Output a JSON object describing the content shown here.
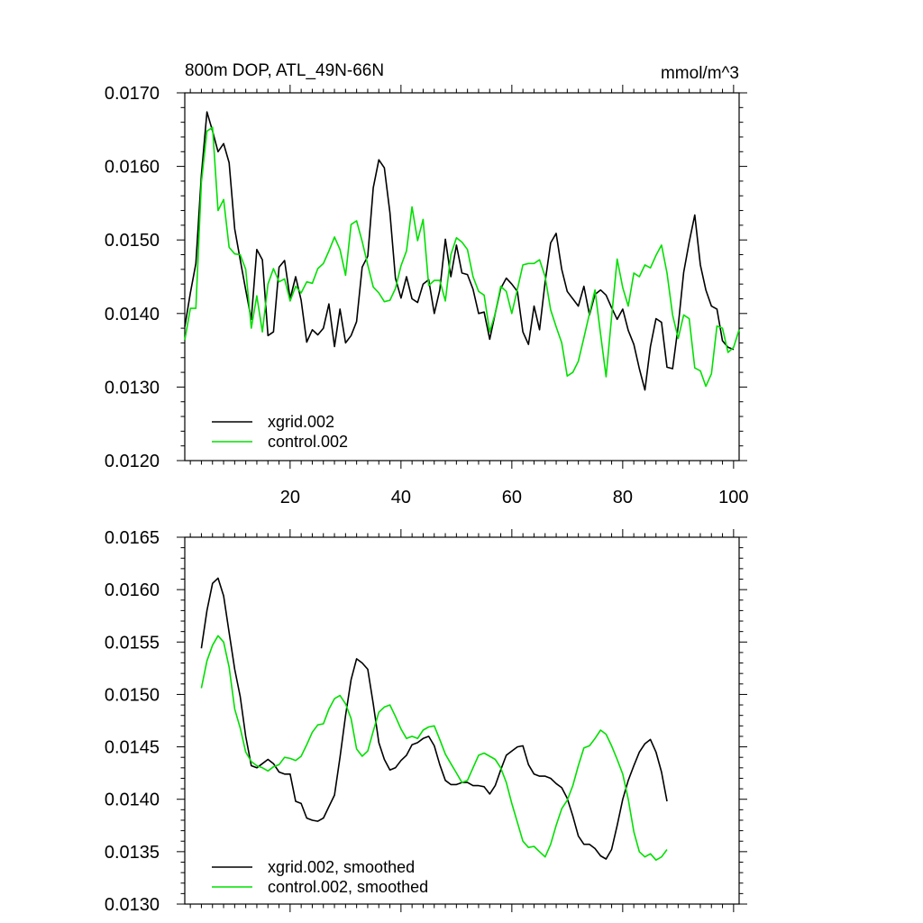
{
  "chart_data": [
    {
      "type": "line",
      "title": "800m DOP, ATL_49N-66N",
      "units": "mmol/m^3",
      "xlim": [
        1,
        101
      ],
      "ylim": [
        0.012,
        0.017
      ],
      "y_ticks": [
        "0.0170",
        "0.0160",
        "0.0150",
        "0.0140",
        "0.0130",
        "0.0120"
      ],
      "x_ticks": [
        "20",
        "40",
        "60",
        "80",
        "100"
      ],
      "legend_position": "bottom-left",
      "series": [
        {
          "name": "xgrid.002",
          "color": "#000000",
          "x_start": 1,
          "values": [
            0.01382,
            0.01428,
            0.01468,
            0.01588,
            0.01674,
            0.01648,
            0.0162,
            0.01631,
            0.01605,
            0.01515,
            0.01473,
            0.01432,
            0.01392,
            0.01487,
            0.01473,
            0.0137,
            0.01375,
            0.01463,
            0.01472,
            0.0142,
            0.0145,
            0.01418,
            0.01361,
            0.01378,
            0.01371,
            0.0138,
            0.01413,
            0.01355,
            0.01406,
            0.0136,
            0.0137,
            0.01389,
            0.01463,
            0.01478,
            0.01571,
            0.01609,
            0.01598,
            0.01537,
            0.01448,
            0.01421,
            0.0145,
            0.0142,
            0.01415,
            0.0144,
            0.01446,
            0.014,
            0.01432,
            0.01501,
            0.0145,
            0.01493,
            0.01455,
            0.01453,
            0.01433,
            0.014,
            0.01402,
            0.01365,
            0.014,
            0.01434,
            0.01448,
            0.0144,
            0.0143,
            0.01375,
            0.01358,
            0.0141,
            0.01378,
            0.01443,
            0.01496,
            0.01509,
            0.0146,
            0.0143,
            0.0142,
            0.0141,
            0.01437,
            0.01398,
            0.01426,
            0.01432,
            0.01425,
            0.01408,
            0.01392,
            0.01406,
            0.01377,
            0.01358,
            0.01325,
            0.01296,
            0.01355,
            0.01393,
            0.01388,
            0.01327,
            0.01325,
            0.01383,
            0.01456,
            0.01497,
            0.01534,
            0.01466,
            0.01432,
            0.0141,
            0.01406,
            0.01363,
            0.01354,
            0.01351
          ]
        },
        {
          "name": "control.002",
          "color": "#00e000",
          "x_start": 1,
          "values": [
            0.01364,
            0.01407,
            0.01407,
            0.01578,
            0.01648,
            0.01653,
            0.0154,
            0.01555,
            0.0149,
            0.01481,
            0.0148,
            0.0146,
            0.0138,
            0.01424,
            0.01375,
            0.0144,
            0.01461,
            0.01443,
            0.01447,
            0.01417,
            0.01437,
            0.01428,
            0.01443,
            0.01441,
            0.01461,
            0.01468,
            0.01485,
            0.01504,
            0.01487,
            0.01452,
            0.01521,
            0.01526,
            0.01498,
            0.01466,
            0.01436,
            0.01428,
            0.01416,
            0.01418,
            0.01434,
            0.01465,
            0.01485,
            0.01545,
            0.01499,
            0.01528,
            0.01438,
            0.01445,
            0.01445,
            0.01417,
            0.0148,
            0.01503,
            0.01497,
            0.01487,
            0.0145,
            0.0143,
            0.01425,
            0.01375,
            0.014,
            0.01437,
            0.0143,
            0.014,
            0.01433,
            0.01466,
            0.01468,
            0.01468,
            0.01473,
            0.0145,
            0.01405,
            0.01382,
            0.0136,
            0.01315,
            0.0132,
            0.01335,
            0.01367,
            0.014,
            0.01432,
            0.01372,
            0.01314,
            0.01395,
            0.01474,
            0.01435,
            0.0141,
            0.01455,
            0.0145,
            0.01466,
            0.01462,
            0.01479,
            0.01493,
            0.01455,
            0.01398,
            0.01366,
            0.01398,
            0.01393,
            0.01326,
            0.01322,
            0.01301,
            0.01318,
            0.01383,
            0.0138,
            0.01347,
            0.01354,
            0.01378
          ]
        }
      ]
    },
    {
      "type": "line",
      "xlim": [
        1,
        101
      ],
      "ylim": [
        0.013,
        0.0165
      ],
      "y_ticks": [
        "0.0165",
        "0.0160",
        "0.0155",
        "0.0150",
        "0.0145",
        "0.0140",
        "0.0135",
        "0.0130"
      ],
      "legend_position": "bottom-left",
      "series": [
        {
          "name": "xgrid.002, smoothed",
          "color": "#000000",
          "x_start": 4,
          "values": [
            0.01544,
            0.0158,
            0.01606,
            0.01611,
            0.01594,
            0.01559,
            0.01524,
            0.01498,
            0.0146,
            0.01432,
            0.0143,
            0.01434,
            0.01438,
            0.01434,
            0.01426,
            0.01424,
            0.01424,
            0.01398,
            0.01396,
            0.01382,
            0.0138,
            0.01379,
            0.01382,
            0.01393,
            0.01404,
            0.0144,
            0.0148,
            0.01514,
            0.01534,
            0.0153,
            0.01524,
            0.01491,
            0.01454,
            0.01438,
            0.01428,
            0.0143,
            0.01437,
            0.01442,
            0.01452,
            0.01454,
            0.01458,
            0.0146,
            0.01451,
            0.01433,
            0.01418,
            0.01414,
            0.01414,
            0.01416,
            0.01416,
            0.01413,
            0.01413,
            0.01412,
            0.01405,
            0.01413,
            0.01428,
            0.01442,
            0.01446,
            0.0145,
            0.01451,
            0.01433,
            0.01424,
            0.01422,
            0.01422,
            0.0142,
            0.01415,
            0.01411,
            0.01401,
            0.01384,
            0.01365,
            0.01357,
            0.01357,
            0.01353,
            0.01346,
            0.01343,
            0.01352,
            0.01375,
            0.014,
            0.01418,
            0.01432,
            0.01445,
            0.01453,
            0.01457,
            0.01445,
            0.01426,
            0.01398
          ]
        },
        {
          "name": "control.002, smoothed",
          "color": "#00e000",
          "x_start": 4,
          "values": [
            0.01506,
            0.01532,
            0.01547,
            0.01556,
            0.0155,
            0.01526,
            0.01486,
            0.01468,
            0.01445,
            0.01436,
            0.01432,
            0.0143,
            0.01427,
            0.01431,
            0.01433,
            0.0144,
            0.01439,
            0.01437,
            0.01441,
            0.01452,
            0.01464,
            0.01471,
            0.01472,
            0.01486,
            0.01496,
            0.01499,
            0.01491,
            0.01477,
            0.01448,
            0.01441,
            0.01446,
            0.01465,
            0.01483,
            0.01488,
            0.0149,
            0.01479,
            0.01467,
            0.01458,
            0.0146,
            0.01458,
            0.01466,
            0.01469,
            0.0147,
            0.01457,
            0.01443,
            0.01434,
            0.01425,
            0.01416,
            0.01418,
            0.0143,
            0.01442,
            0.01444,
            0.01441,
            0.01438,
            0.0143,
            0.01416,
            0.01396,
            0.01378,
            0.0136,
            0.01354,
            0.01355,
            0.0135,
            0.01345,
            0.01357,
            0.01375,
            0.01391,
            0.01399,
            0.01413,
            0.01432,
            0.01449,
            0.01451,
            0.01458,
            0.01466,
            0.01462,
            0.01451,
            0.01438,
            0.01424,
            0.014,
            0.01369,
            0.0135,
            0.01345,
            0.01348,
            0.01342,
            0.01345,
            0.01352
          ]
        }
      ]
    }
  ]
}
